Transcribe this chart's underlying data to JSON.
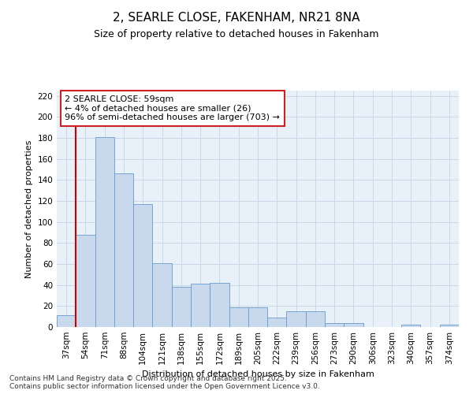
{
  "title": "2, SEARLE CLOSE, FAKENHAM, NR21 8NA",
  "subtitle": "Size of property relative to detached houses in Fakenham",
  "xlabel": "Distribution of detached houses by size in Fakenham",
  "ylabel": "Number of detached properties",
  "categories": [
    "37sqm",
    "54sqm",
    "71sqm",
    "88sqm",
    "104sqm",
    "121sqm",
    "138sqm",
    "155sqm",
    "172sqm",
    "189sqm",
    "205sqm",
    "222sqm",
    "239sqm",
    "256sqm",
    "273sqm",
    "290sqm",
    "306sqm",
    "323sqm",
    "340sqm",
    "357sqm",
    "374sqm"
  ],
  "values": [
    11,
    88,
    181,
    146,
    117,
    61,
    38,
    41,
    42,
    19,
    19,
    9,
    15,
    15,
    4,
    4,
    0,
    0,
    2,
    0,
    2
  ],
  "bar_color": "#c8d9ee",
  "bar_edge_color": "#6699cc",
  "grid_color": "#c8d8e8",
  "background_color": "#e8f0f8",
  "red_line_x": 1.5,
  "annotation_text": "2 SEARLE CLOSE: 59sqm\n← 4% of detached houses are smaller (26)\n96% of semi-detached houses are larger (703) →",
  "annotation_box_facecolor": "#ffffff",
  "annotation_box_edgecolor": "#cc2222",
  "ylim": [
    0,
    225
  ],
  "yticks": [
    0,
    20,
    40,
    60,
    80,
    100,
    120,
    140,
    160,
    180,
    200,
    220
  ],
  "footer": "Contains HM Land Registry data © Crown copyright and database right 2025.\nContains public sector information licensed under the Open Government Licence v3.0.",
  "title_fontsize": 11,
  "subtitle_fontsize": 9,
  "axis_label_fontsize": 8,
  "tick_fontsize": 7.5,
  "annotation_fontsize": 8,
  "footer_fontsize": 6.5
}
